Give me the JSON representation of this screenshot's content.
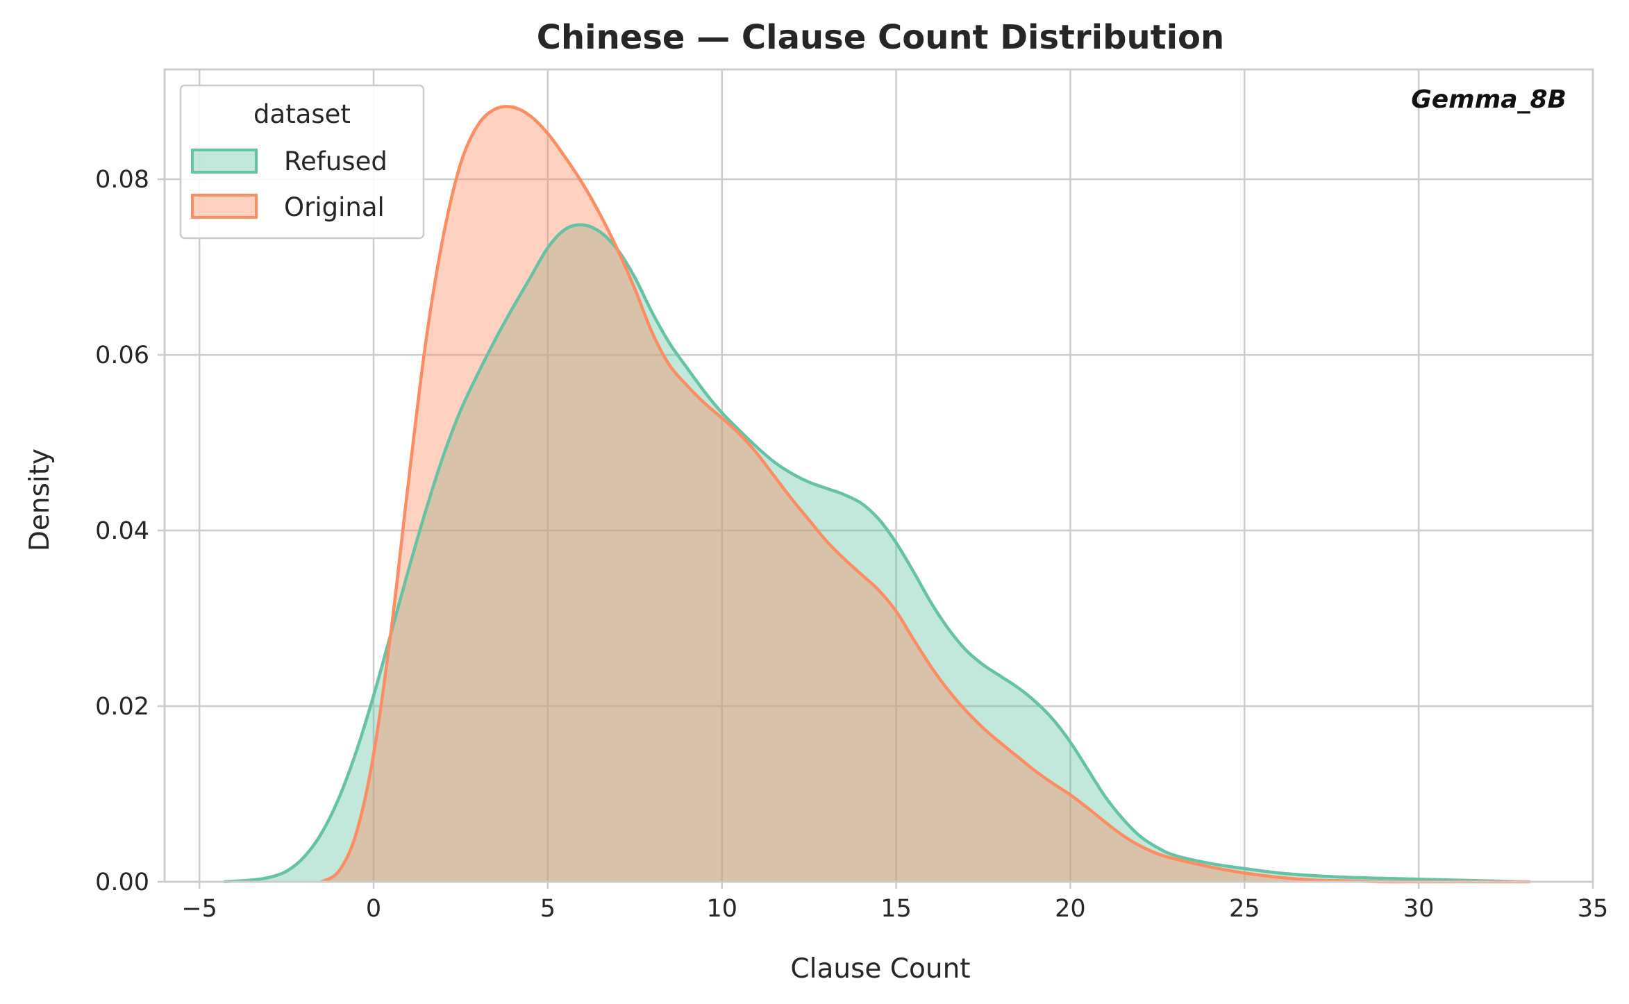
{
  "chart_data": {
    "type": "area",
    "title": "Chinese — Clause Count Distribution",
    "xlabel": "Clause Count",
    "ylabel": "Density",
    "xlim": [
      -6,
      35
    ],
    "ylim": [
      0,
      0.0925
    ],
    "x_ticks": [
      -5,
      0,
      5,
      10,
      15,
      20,
      25,
      30,
      35
    ],
    "x_tick_labels": [
      "−5",
      "0",
      "5",
      "10",
      "15",
      "20",
      "25",
      "30",
      "35"
    ],
    "y_ticks": [
      0,
      0.02,
      0.04,
      0.06,
      0.08
    ],
    "y_tick_labels": [
      "0.00",
      "0.02",
      "0.04",
      "0.06",
      "0.08"
    ],
    "grid": true,
    "legend": {
      "title": "dataset",
      "placement": "top-left"
    },
    "annotation": "Gemma_8B",
    "series": [
      {
        "name": "Refused",
        "color": "#66c2a5",
        "x": [
          -4.3,
          -3.5,
          -3,
          -2.5,
          -2,
          -1.5,
          -1,
          -0.5,
          0,
          0.5,
          1,
          1.5,
          2,
          2.5,
          3,
          3.5,
          4,
          4.5,
          5,
          5.5,
          6,
          6.5,
          7,
          7.5,
          8,
          8.5,
          9,
          9.5,
          10,
          10.5,
          11,
          11.5,
          12,
          12.5,
          13,
          13.5,
          14,
          14.5,
          15,
          15.5,
          16,
          16.5,
          17,
          17.5,
          18,
          18.5,
          19,
          19.5,
          20,
          20.5,
          21,
          21.5,
          22,
          22.5,
          23,
          24,
          25,
          26,
          27,
          28,
          29,
          30,
          31,
          32,
          33
        ],
        "y": [
          0.0,
          0.0002,
          0.0005,
          0.0012,
          0.0028,
          0.0055,
          0.0095,
          0.0148,
          0.0212,
          0.0283,
          0.0355,
          0.0423,
          0.0485,
          0.0537,
          0.0579,
          0.0618,
          0.0654,
          0.0688,
          0.0722,
          0.0743,
          0.0748,
          0.074,
          0.072,
          0.0688,
          0.0648,
          0.0613,
          0.0585,
          0.0558,
          0.0534,
          0.0514,
          0.0495,
          0.0478,
          0.0465,
          0.0455,
          0.0448,
          0.0441,
          0.0431,
          0.0413,
          0.0386,
          0.0353,
          0.0318,
          0.0288,
          0.0264,
          0.0247,
          0.0234,
          0.0221,
          0.0205,
          0.0185,
          0.0159,
          0.0128,
          0.0097,
          0.0072,
          0.0052,
          0.0039,
          0.003,
          0.0021,
          0.0015,
          0.001,
          0.0007,
          0.0005,
          0.0004,
          0.0003,
          0.0002,
          0.0001,
          0.0
        ]
      },
      {
        "name": "Original",
        "color": "#fc8d62",
        "x": [
          -1.5,
          -1,
          -0.5,
          0,
          0.5,
          1,
          1.5,
          2,
          2.5,
          3,
          3.5,
          4,
          4.5,
          5,
          5.5,
          6,
          6.5,
          7,
          7.5,
          8,
          8.5,
          9,
          9.5,
          10,
          10.5,
          11,
          11.5,
          12,
          12.5,
          13,
          13.5,
          14,
          14.5,
          15,
          15.5,
          16,
          16.5,
          17,
          17.5,
          18,
          18.5,
          19,
          19.5,
          20,
          20.5,
          21,
          21.5,
          22,
          22.5,
          23,
          24,
          25,
          26,
          27,
          28,
          29,
          30,
          31,
          32,
          33.2
        ],
        "y": [
          0.0,
          0.0012,
          0.0055,
          0.0145,
          0.0285,
          0.0455,
          0.0615,
          0.0735,
          0.0818,
          0.0862,
          0.088,
          0.0882,
          0.0872,
          0.0852,
          0.0825,
          0.0795,
          0.076,
          0.072,
          0.0675,
          0.0625,
          0.0588,
          0.0565,
          0.0545,
          0.0528,
          0.051,
          0.0488,
          0.0462,
          0.0436,
          0.0412,
          0.0388,
          0.0368,
          0.035,
          0.0332,
          0.0308,
          0.0276,
          0.0245,
          0.0218,
          0.0195,
          0.0175,
          0.0158,
          0.0142,
          0.0126,
          0.0112,
          0.0099,
          0.0084,
          0.0068,
          0.0053,
          0.0041,
          0.0032,
          0.0026,
          0.0017,
          0.001,
          0.0005,
          0.0002,
          0.0001,
          0.0,
          0.0,
          0.0,
          0.0,
          0.0
        ]
      }
    ]
  }
}
